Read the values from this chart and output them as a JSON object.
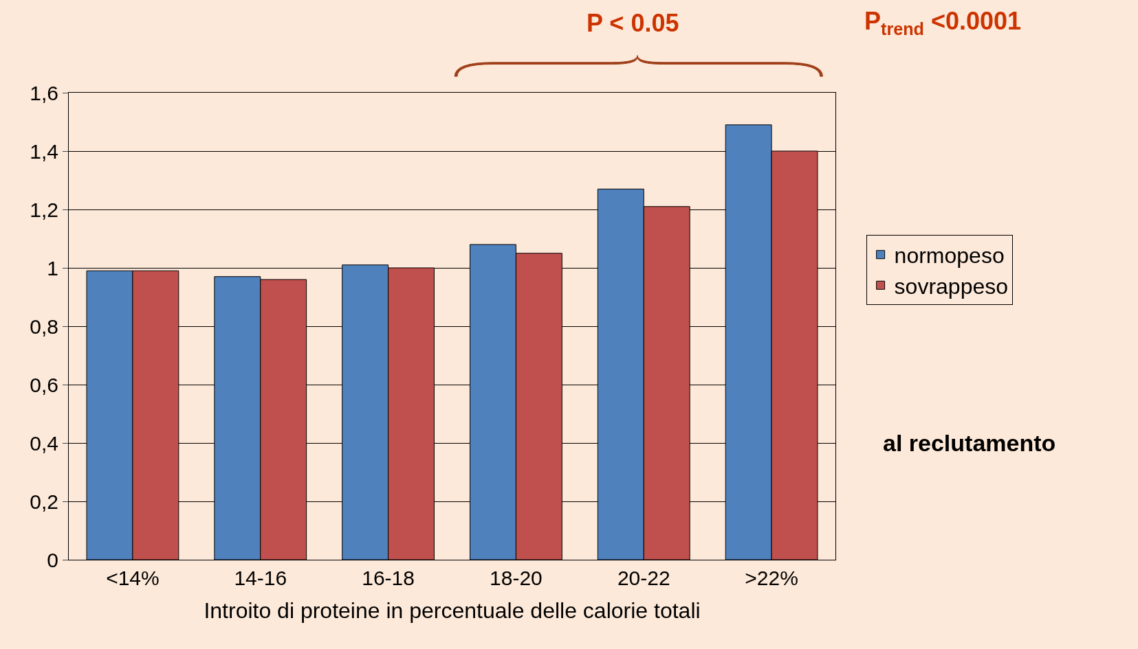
{
  "chart_data": {
    "type": "bar",
    "xlabel": "Introito di proteine in percentuale delle calorie totali",
    "categories": [
      "<14%",
      "14-16",
      "16-18",
      "18-20",
      "20-22",
      ">22%"
    ],
    "series": [
      {
        "name": "normopeso",
        "color": "#4f81bd",
        "values": [
          0.99,
          0.97,
          1.01,
          1.08,
          1.27,
          1.49
        ]
      },
      {
        "name": "sovrappeso",
        "color": "#c0504d",
        "values": [
          0.99,
          0.96,
          1.0,
          1.05,
          1.21,
          1.4
        ]
      }
    ],
    "ylim": [
      0,
      1.6
    ],
    "yticks": [
      0,
      {
        "value": 0.2,
        "label": "0,2"
      },
      {
        "value": 0.4,
        "label": "0,4"
      },
      {
        "value": 0.6,
        "label": "0,6"
      },
      {
        "value": 0.8,
        "label": "0,8"
      },
      1,
      {
        "value": 1.2,
        "label": "1,2"
      },
      {
        "value": 1.4,
        "label": "1,4"
      },
      {
        "value": 1.6,
        "label": "1,6"
      }
    ],
    "grid": "y",
    "legend": "right",
    "annotations": [
      "P < 0.05",
      "P$_{trend}$ <0.0001",
      "al reclutamento"
    ]
  }
}
